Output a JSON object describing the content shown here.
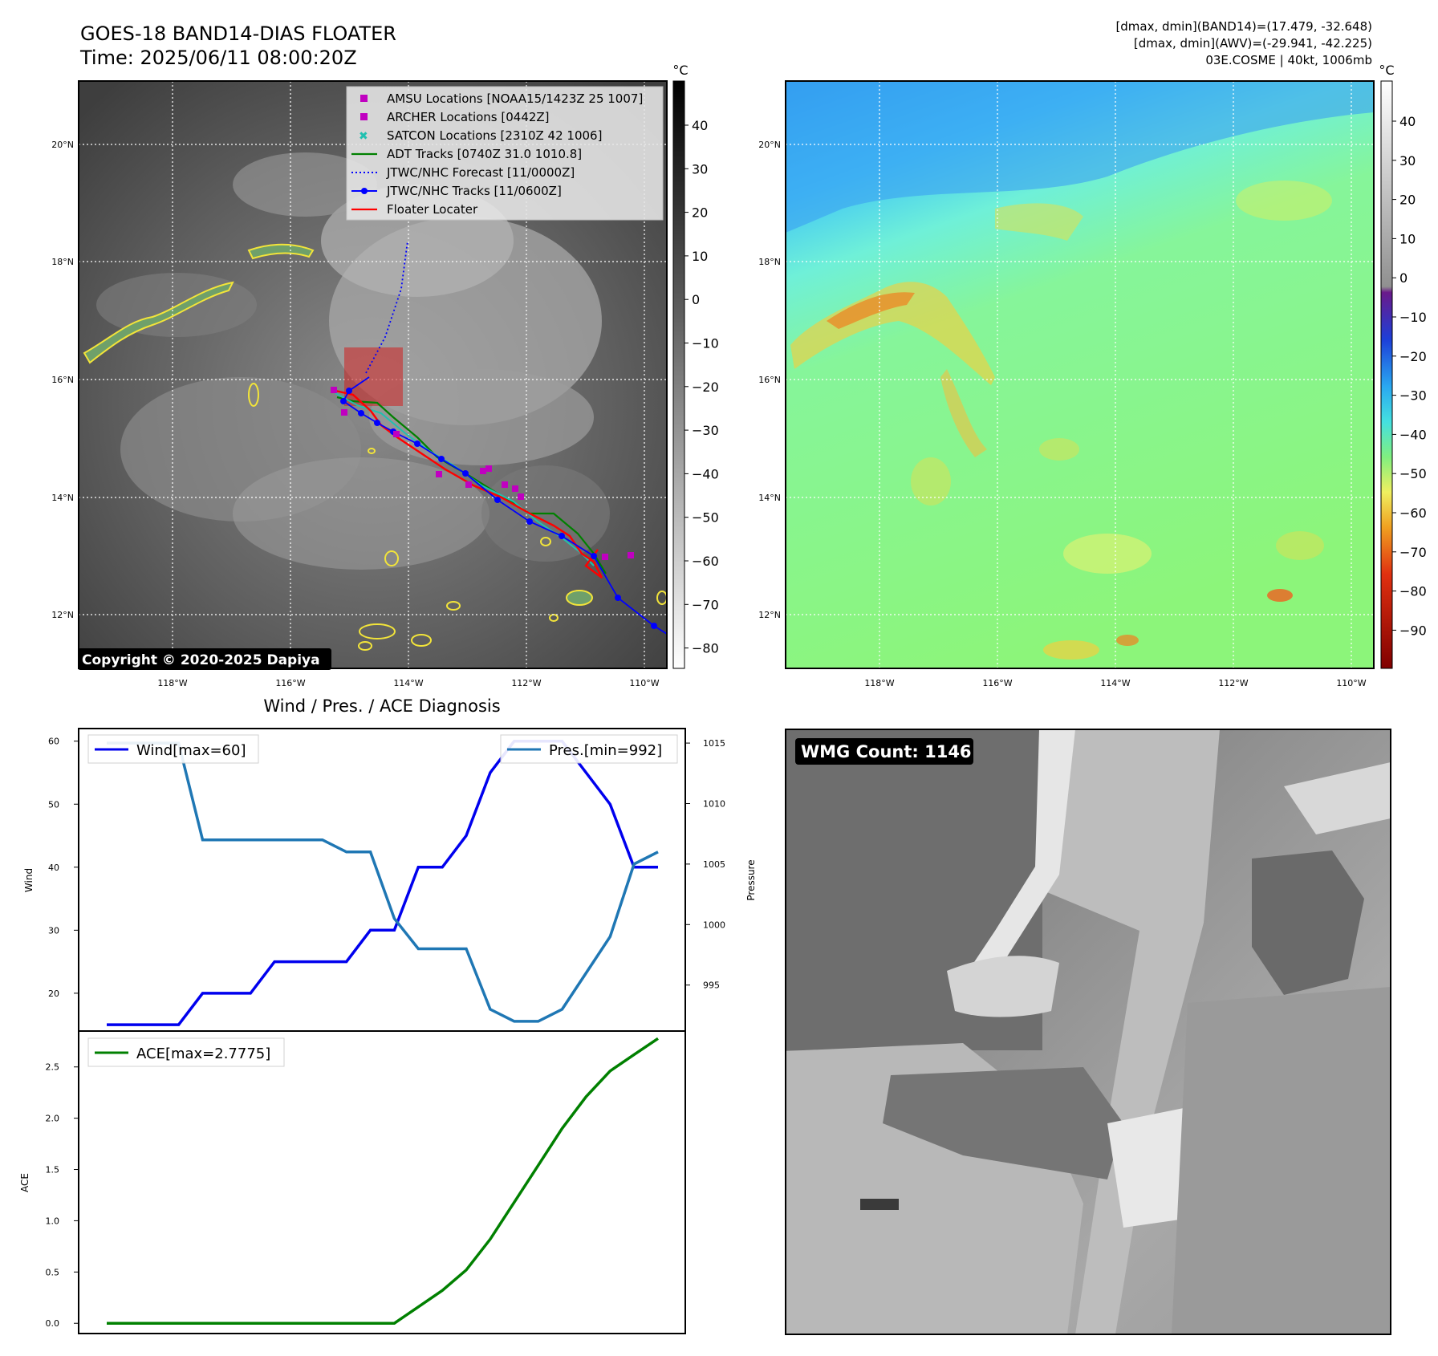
{
  "header": {
    "title_line1": "GOES-18 BAND14-DIAS FLOATER",
    "title_line2": "Time: 2025/06/11 08:00:20Z",
    "meta_line1": "[dmax, dmin](BAND14)=(17.479, -32.648)",
    "meta_line2": "[dmax, dmin](AWV)=(-29.941, -42.225)",
    "meta_line3": "03E.COSME | 40kt, 1006mb"
  },
  "map_axes": {
    "lon_labels": [
      "118°W",
      "116°W",
      "114°W",
      "112°W",
      "110°W"
    ],
    "lat_labels": [
      "20°N",
      "18°N",
      "16°N",
      "14°N",
      "12°N"
    ]
  },
  "ir_panel": {
    "colorbar_unit": "°C",
    "colorbar_ticks": [
      "40",
      "30",
      "20",
      "10",
      "0",
      "−10",
      "−20",
      "−30",
      "−40",
      "−50",
      "−60",
      "−70",
      "−80"
    ],
    "copyright": "Copyright © 2020-2025 Dapiya",
    "legend": [
      {
        "label": "AMSU Locations [NOAA15/1423Z 25 1007]",
        "color": "#c000c0"
      },
      {
        "label": "ARCHER Locations [0442Z]",
        "color": "#c000c0"
      },
      {
        "label": "SATCON Locations [2310Z 42 1006]",
        "color": "#20c0b0"
      },
      {
        "label": "ADT Tracks [0740Z 31.0 1010.8]",
        "color": "#008000"
      },
      {
        "label": "JTWC/NHC Forecast [11/0000Z]",
        "color": "#0000ff"
      },
      {
        "label": "JTWC/NHC Tracks [11/0600Z]",
        "color": "#0000ff"
      },
      {
        "label": "Floater Locater",
        "color": "#ff0000"
      }
    ]
  },
  "wv_panel": {
    "colorbar_unit": "°C",
    "colorbar_ticks": [
      "40",
      "30",
      "20",
      "10",
      "0",
      "−10",
      "−20",
      "−30",
      "−40",
      "−50",
      "−60",
      "−70",
      "−80",
      "−90"
    ]
  },
  "wmg_panel": {
    "label": "WMG Count: 1146"
  },
  "chart_data": [
    {
      "type": "line",
      "title": "Wind / Pres. / ACE Diagnosis",
      "ylabel": "Wind",
      "ylabel_right": "Pressure",
      "ylim": [
        14,
        62
      ],
      "ylim_right": [
        991.2,
        1016.2
      ],
      "yticks": [
        20,
        30,
        40,
        50,
        60
      ],
      "yticks_right": [
        995,
        1000,
        1005,
        1010,
        1015
      ],
      "x": [
        0,
        1,
        2,
        3,
        4,
        5,
        6,
        7,
        8,
        9,
        10,
        11,
        12,
        13,
        14,
        15,
        16,
        17,
        18,
        19,
        20,
        21,
        22,
        23
      ],
      "series": [
        {
          "name": "Wind[max=60]",
          "axis": "left",
          "color": "#0000ee",
          "values": [
            15,
            15,
            15,
            15,
            20,
            20,
            20,
            25,
            25,
            25,
            25,
            30,
            30,
            40,
            40,
            45,
            55,
            60,
            60,
            60,
            55,
            50,
            40,
            40
          ]
        },
        {
          "name": "Pres.[min=992]",
          "axis": "right",
          "color": "#1f77b4",
          "values": [
            1015,
            1015,
            1015,
            1015,
            1007,
            1007,
            1007,
            1007,
            1007,
            1007,
            1006,
            1006,
            1000.5,
            998,
            998,
            998,
            993,
            992,
            992,
            993,
            996,
            999,
            1005,
            1006
          ]
        }
      ]
    },
    {
      "type": "line",
      "ylabel": "ACE",
      "ylim": [
        -0.1,
        2.85
      ],
      "yticks": [
        0.0,
        0.5,
        1.0,
        1.5,
        2.0,
        2.5
      ],
      "ytick_labels": [
        "0.0",
        "0.5",
        "1.0",
        "1.5",
        "2.0",
        "2.5"
      ],
      "x": [
        0,
        1,
        2,
        3,
        4,
        5,
        6,
        7,
        8,
        9,
        10,
        11,
        12,
        13,
        14,
        15,
        16,
        17,
        18,
        19,
        20,
        21,
        22,
        23
      ],
      "series": [
        {
          "name": "ACE[max=2.7775]",
          "color": "#008000",
          "values": [
            0,
            0,
            0,
            0,
            0,
            0,
            0,
            0,
            0,
            0,
            0,
            0,
            0,
            0.16,
            0.32,
            0.52,
            0.82,
            1.18,
            1.54,
            1.9,
            2.21,
            2.46,
            2.62,
            2.7775
          ]
        }
      ]
    }
  ]
}
